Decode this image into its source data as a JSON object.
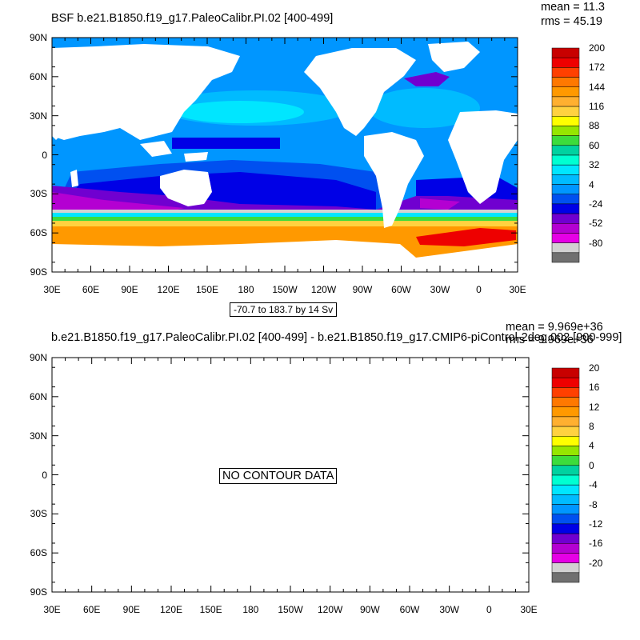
{
  "panel1": {
    "title": "BSF b.e21.B1850.f19_g17.PaleoCalibr.PI.02 [400-499]",
    "mean": "mean = 11.3",
    "rms": "rms = 45.19",
    "range_label": "-70.7 to 183.7 by 14 Sv",
    "lat_labels": [
      "90N",
      "60N",
      "30N",
      "0",
      "30S",
      "60S",
      "90S"
    ],
    "lon_labels": [
      "30E",
      "60E",
      "90E",
      "120E",
      "150E",
      "180",
      "150W",
      "120W",
      "90W",
      "60W",
      "30W",
      "0",
      "30E"
    ],
    "colorbar": {
      "colors": [
        "#c80000",
        "#ee0000",
        "#ff4000",
        "#ff7800",
        "#ff9900",
        "#ffb030",
        "#ffd240",
        "#ffff00",
        "#96e600",
        "#3cdc3c",
        "#00d2a0",
        "#00ffd2",
        "#00e6ff",
        "#00bbff",
        "#0096ff",
        "#0050f0",
        "#0000e6",
        "#7000d0",
        "#b400d2",
        "#e600e6",
        "#d2d2d2",
        "#707070"
      ],
      "labels": [
        "200",
        "172",
        "144",
        "116",
        "88",
        "60",
        "32",
        "4",
        "-24",
        "-52",
        "-80"
      ]
    }
  },
  "panel2": {
    "title": "b.e21.B1850.f19_g17.PaleoCalibr.PI.02 [400-499] - b.e21.B1850.f19_g17.CMIP6-piControl-2deg.002 [900-999]",
    "mean": "mean = 9.969e+36",
    "rms": "rms = 9.969e+36",
    "nodata": "NO CONTOUR DATA",
    "lat_labels": [
      "90N",
      "60N",
      "30N",
      "0",
      "30S",
      "60S",
      "90S"
    ],
    "lon_labels": [
      "30E",
      "60E",
      "90E",
      "120E",
      "150E",
      "180",
      "150W",
      "120W",
      "90W",
      "60W",
      "30W",
      "0",
      "30E"
    ],
    "colorbar": {
      "colors": [
        "#c80000",
        "#ee0000",
        "#ff4000",
        "#ff7800",
        "#ff9900",
        "#ffb030",
        "#ffd240",
        "#ffff00",
        "#96e600",
        "#3cdc3c",
        "#00d2a0",
        "#00ffd2",
        "#00e6ff",
        "#00bbff",
        "#0096ff",
        "#0050f0",
        "#0000e6",
        "#7000d0",
        "#b400d2",
        "#e600e6",
        "#d2d2d2",
        "#707070"
      ],
      "labels": [
        "20",
        "16",
        "12",
        "8",
        "4",
        "0",
        "-4",
        "-8",
        "-12",
        "-16",
        "-20"
      ]
    }
  },
  "map_colors": {
    "land": "#ffffff",
    "ocean_base": "#0096ff",
    "ocean_light": "#00bbff",
    "ocean_cyan": "#00e6ff",
    "ocean_deep": "#0050f0",
    "ocean_darkest": "#0000e6",
    "southern_purple": "#7000d0",
    "southern_magenta": "#b400d2",
    "acc_gray": "#d2d2d2",
    "acc_green": "#3cdc3c",
    "acc_yellow": "#ffd240",
    "acc_orange": "#ff9900",
    "acc_red": "#ee0000"
  }
}
